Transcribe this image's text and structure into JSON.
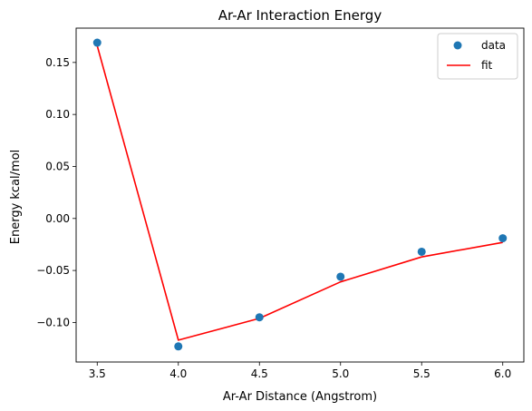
{
  "chart_data": {
    "type": "scatter",
    "title": "Ar-Ar Interaction Energy",
    "xlabel": "Ar-Ar Distance (Angstrom)",
    "ylabel": "Energy kcal/mol",
    "xlim": [
      3.37,
      6.13
    ],
    "ylim": [
      -0.138,
      0.183
    ],
    "xticks": [
      3.5,
      4.0,
      4.5,
      5.0,
      5.5,
      6.0
    ],
    "xtick_labels": [
      "3.5",
      "4.0",
      "4.5",
      "5.0",
      "5.5",
      "6.0"
    ],
    "yticks": [
      -0.1,
      -0.05,
      0.0,
      0.05,
      0.1,
      0.15
    ],
    "ytick_labels": [
      "−0.10",
      "−0.05",
      "0.00",
      "0.05",
      "0.10",
      "0.15"
    ],
    "grid": false,
    "legend_position": "top-right",
    "series": [
      {
        "name": "data",
        "kind": "scatter",
        "color": "#1f77b4",
        "x": [
          3.5,
          4.0,
          4.5,
          5.0,
          5.5,
          6.0
        ],
        "y": [
          0.169,
          -0.123,
          -0.095,
          -0.056,
          -0.032,
          -0.019
        ]
      },
      {
        "name": "fit",
        "kind": "line",
        "color": "#ff0000",
        "x": [
          3.5,
          4.0,
          4.5,
          5.0,
          5.5,
          6.0
        ],
        "y": [
          0.166,
          -0.117,
          -0.096,
          -0.061,
          -0.037,
          -0.023
        ]
      }
    ]
  }
}
